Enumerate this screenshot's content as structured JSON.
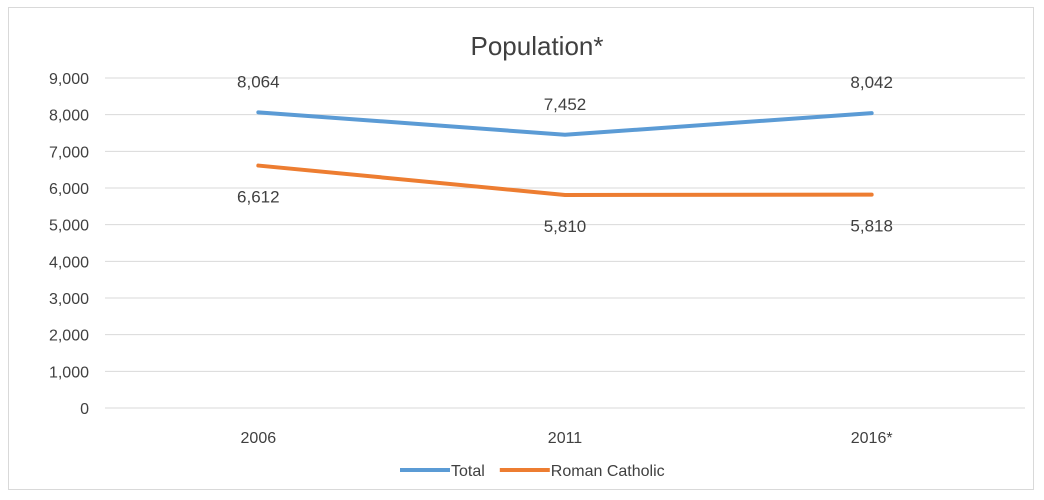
{
  "chart_data": {
    "type": "line",
    "title": "Population*",
    "categories": [
      "2006",
      "2011",
      "2016*"
    ],
    "series": [
      {
        "name": "Total",
        "values": [
          8064,
          7452,
          8042
        ],
        "labels": [
          "8,064",
          "7,452",
          "8,042"
        ],
        "color": "#5b9bd5"
      },
      {
        "name": "Roman Catholic",
        "values": [
          6612,
          5810,
          5818
        ],
        "labels": [
          "6,612",
          "5,810",
          "5,818"
        ],
        "color": "#ed7d31"
      }
    ],
    "ylim": [
      0,
      9000
    ],
    "yticks": [
      0,
      1000,
      2000,
      3000,
      4000,
      5000,
      6000,
      7000,
      8000,
      9000
    ],
    "ytick_labels": [
      "0",
      "1,000",
      "2,000",
      "3,000",
      "4,000",
      "5,000",
      "6,000",
      "7,000",
      "8,000",
      "9,000"
    ],
    "grid": true,
    "legend": "bottom"
  }
}
